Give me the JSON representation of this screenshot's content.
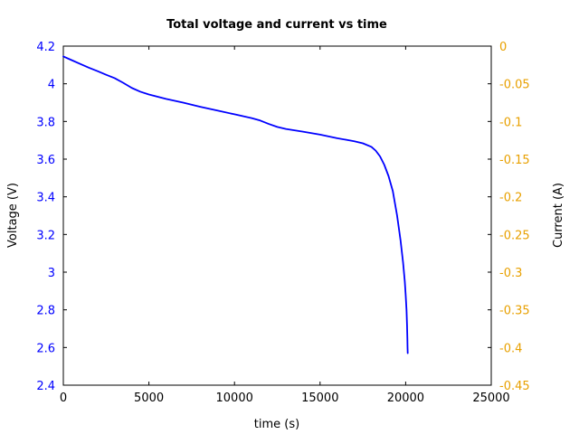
{
  "chart_data": {
    "type": "line",
    "title": "Total voltage and current vs time",
    "xlabel": "time (s)",
    "ylabel": "Voltage (V)",
    "y2label": "Current (A)",
    "xlim": [
      0,
      25000
    ],
    "ylim": [
      2.4,
      4.2
    ],
    "y2lim": [
      -0.45,
      0
    ],
    "xticks": [
      0,
      5000,
      10000,
      15000,
      20000,
      25000
    ],
    "xtick_labels": [
      "0",
      "5000",
      "10000",
      "15000",
      "20000",
      "25000"
    ],
    "yticks": [
      2.4,
      2.6,
      2.8,
      3,
      3.2,
      3.4,
      3.6,
      3.8,
      4,
      4.2
    ],
    "ytick_labels": [
      "2.4",
      "2.6",
      "2.8",
      "3",
      "3.2",
      "3.4",
      "3.6",
      "3.8",
      "4",
      "4.2"
    ],
    "y2ticks": [
      -0.45,
      -0.4,
      -0.35,
      -0.3,
      -0.25,
      -0.2,
      -0.15,
      -0.1,
      -0.05,
      0
    ],
    "y2tick_labels": [
      "-0.45",
      "-0.4",
      "-0.35",
      "-0.3",
      "-0.25",
      "-0.2",
      "-0.15",
      "-0.1",
      "-0.05",
      "0"
    ],
    "grid": false,
    "colors": {
      "voltage": "#0000ff",
      "current_axis": "#e8a000",
      "frame": "#000000"
    },
    "series": [
      {
        "axis": "left",
        "x": [
          0,
          500,
          1000,
          1500,
          2000,
          2500,
          3000,
          3500,
          4000,
          4500,
          5000,
          6000,
          7000,
          8000,
          9000,
          10000,
          11000,
          11500,
          12000,
          12500,
          13000,
          14000,
          15000,
          16000,
          16500,
          17000,
          17500,
          18000,
          18250,
          18500,
          18750,
          19000,
          19250,
          19500,
          19700,
          19850,
          19950,
          20000,
          20050,
          20080,
          20100,
          20110,
          20120
        ],
        "values": [
          4.145,
          4.125,
          4.105,
          4.085,
          4.067,
          4.048,
          4.03,
          4.005,
          3.978,
          3.958,
          3.943,
          3.92,
          3.9,
          3.878,
          3.858,
          3.838,
          3.818,
          3.805,
          3.787,
          3.771,
          3.76,
          3.746,
          3.73,
          3.711,
          3.703,
          3.695,
          3.684,
          3.665,
          3.645,
          3.615,
          3.57,
          3.51,
          3.43,
          3.3,
          3.17,
          3.05,
          2.95,
          2.88,
          2.8,
          2.72,
          2.65,
          2.6,
          2.57
        ]
      }
    ]
  }
}
